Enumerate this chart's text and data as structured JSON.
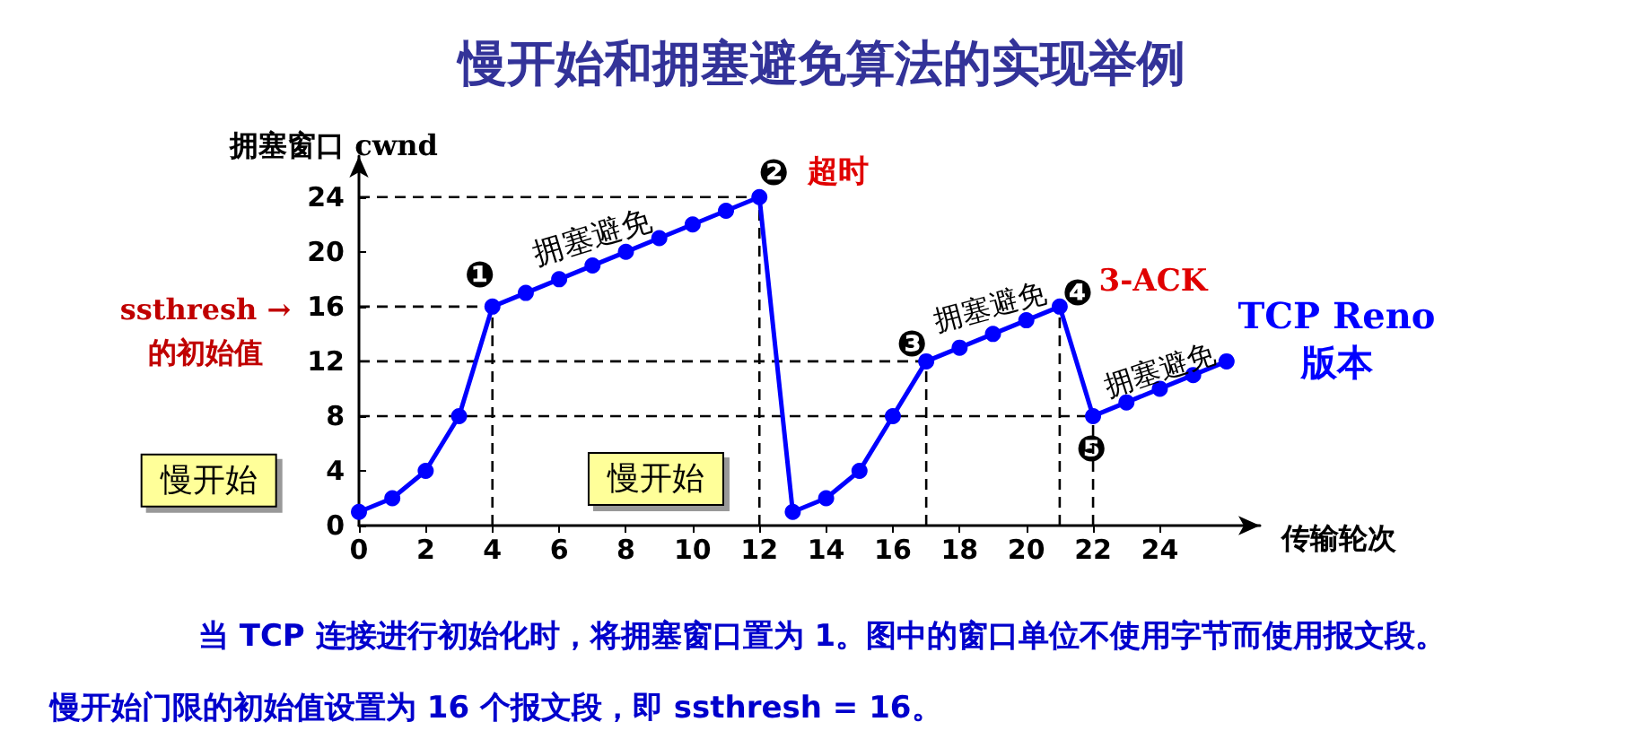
{
  "chart_data": {
    "type": "line",
    "title": "慢开始和拥塞避免算法的实现举例",
    "xlabel": "传输轮次",
    "ylabel": "拥塞窗口 cwnd",
    "x": [
      0,
      1,
      2,
      3,
      4,
      5,
      6,
      7,
      8,
      9,
      10,
      11,
      12,
      13,
      14,
      15,
      16,
      17,
      18,
      19,
      20,
      21,
      22,
      23,
      24,
      25,
      26
    ],
    "series": [
      {
        "color": "#0000ff",
        "values": [
          1,
          2,
          4,
          8,
          16,
          17,
          18,
          19,
          20,
          21,
          22,
          23,
          24,
          1,
          2,
          4,
          8,
          12,
          13,
          14,
          15,
          16,
          8,
          9,
          10,
          11,
          12
        ]
      }
    ],
    "xlim": [
      0,
      27
    ],
    "ylim": [
      0,
      27
    ],
    "xticks": [
      0,
      2,
      4,
      6,
      8,
      10,
      12,
      14,
      16,
      18,
      20,
      22,
      24
    ],
    "yticks": [
      0,
      4,
      8,
      12,
      16,
      20,
      24
    ],
    "grid": false,
    "marker": "circle",
    "line_style": "solid",
    "ref_lines": [
      {
        "axis": "y",
        "value": 24,
        "line_style": "dashed",
        "color": "#000000"
      },
      {
        "axis": "y",
        "value": 16,
        "line_style": "dashed",
        "color": "#000000"
      },
      {
        "axis": "y",
        "value": 12,
        "line_style": "dashed",
        "color": "#000000"
      },
      {
        "axis": "y",
        "value": 8,
        "line_style": "dashed",
        "color": "#000000"
      },
      {
        "axis": "x",
        "value": 4,
        "line_style": "dashed",
        "color": "#000000"
      },
      {
        "axis": "x",
        "value": 12,
        "line_style": "dashed",
        "color": "#000000"
      },
      {
        "axis": "x",
        "value": 17,
        "line_style": "dashed",
        "color": "#000000"
      },
      {
        "axis": "x",
        "value": 21,
        "line_style": "dashed",
        "color": "#000000"
      },
      {
        "axis": "x",
        "value": 22,
        "line_style": "dashed",
        "color": "#000000"
      }
    ],
    "annotations": [
      {
        "text": "❶",
        "x": 4,
        "y": 16
      },
      {
        "text": "❷",
        "x": 12,
        "y": 24
      },
      "超时",
      {
        "text": "❸",
        "x": 17,
        "y": 12
      },
      {
        "text": "❹",
        "x": 21,
        "y": 16
      },
      "3-ACK",
      {
        "text": "❺",
        "x": 22,
        "y": 8
      },
      "拥塞避免",
      "拥塞避免",
      "拥塞避免",
      "慢开始",
      "慢开始",
      "ssthresh →\n的初始值",
      "TCP Reno\n版本",
      "当 TCP 连接进行初始化时，将拥塞窗口置为 1。图中的窗口单位不使用字节而使用报文段。",
      "慢开始门限的初始值设置为 16 个报文段，即 ssthresh = 16。"
    ]
  }
}
